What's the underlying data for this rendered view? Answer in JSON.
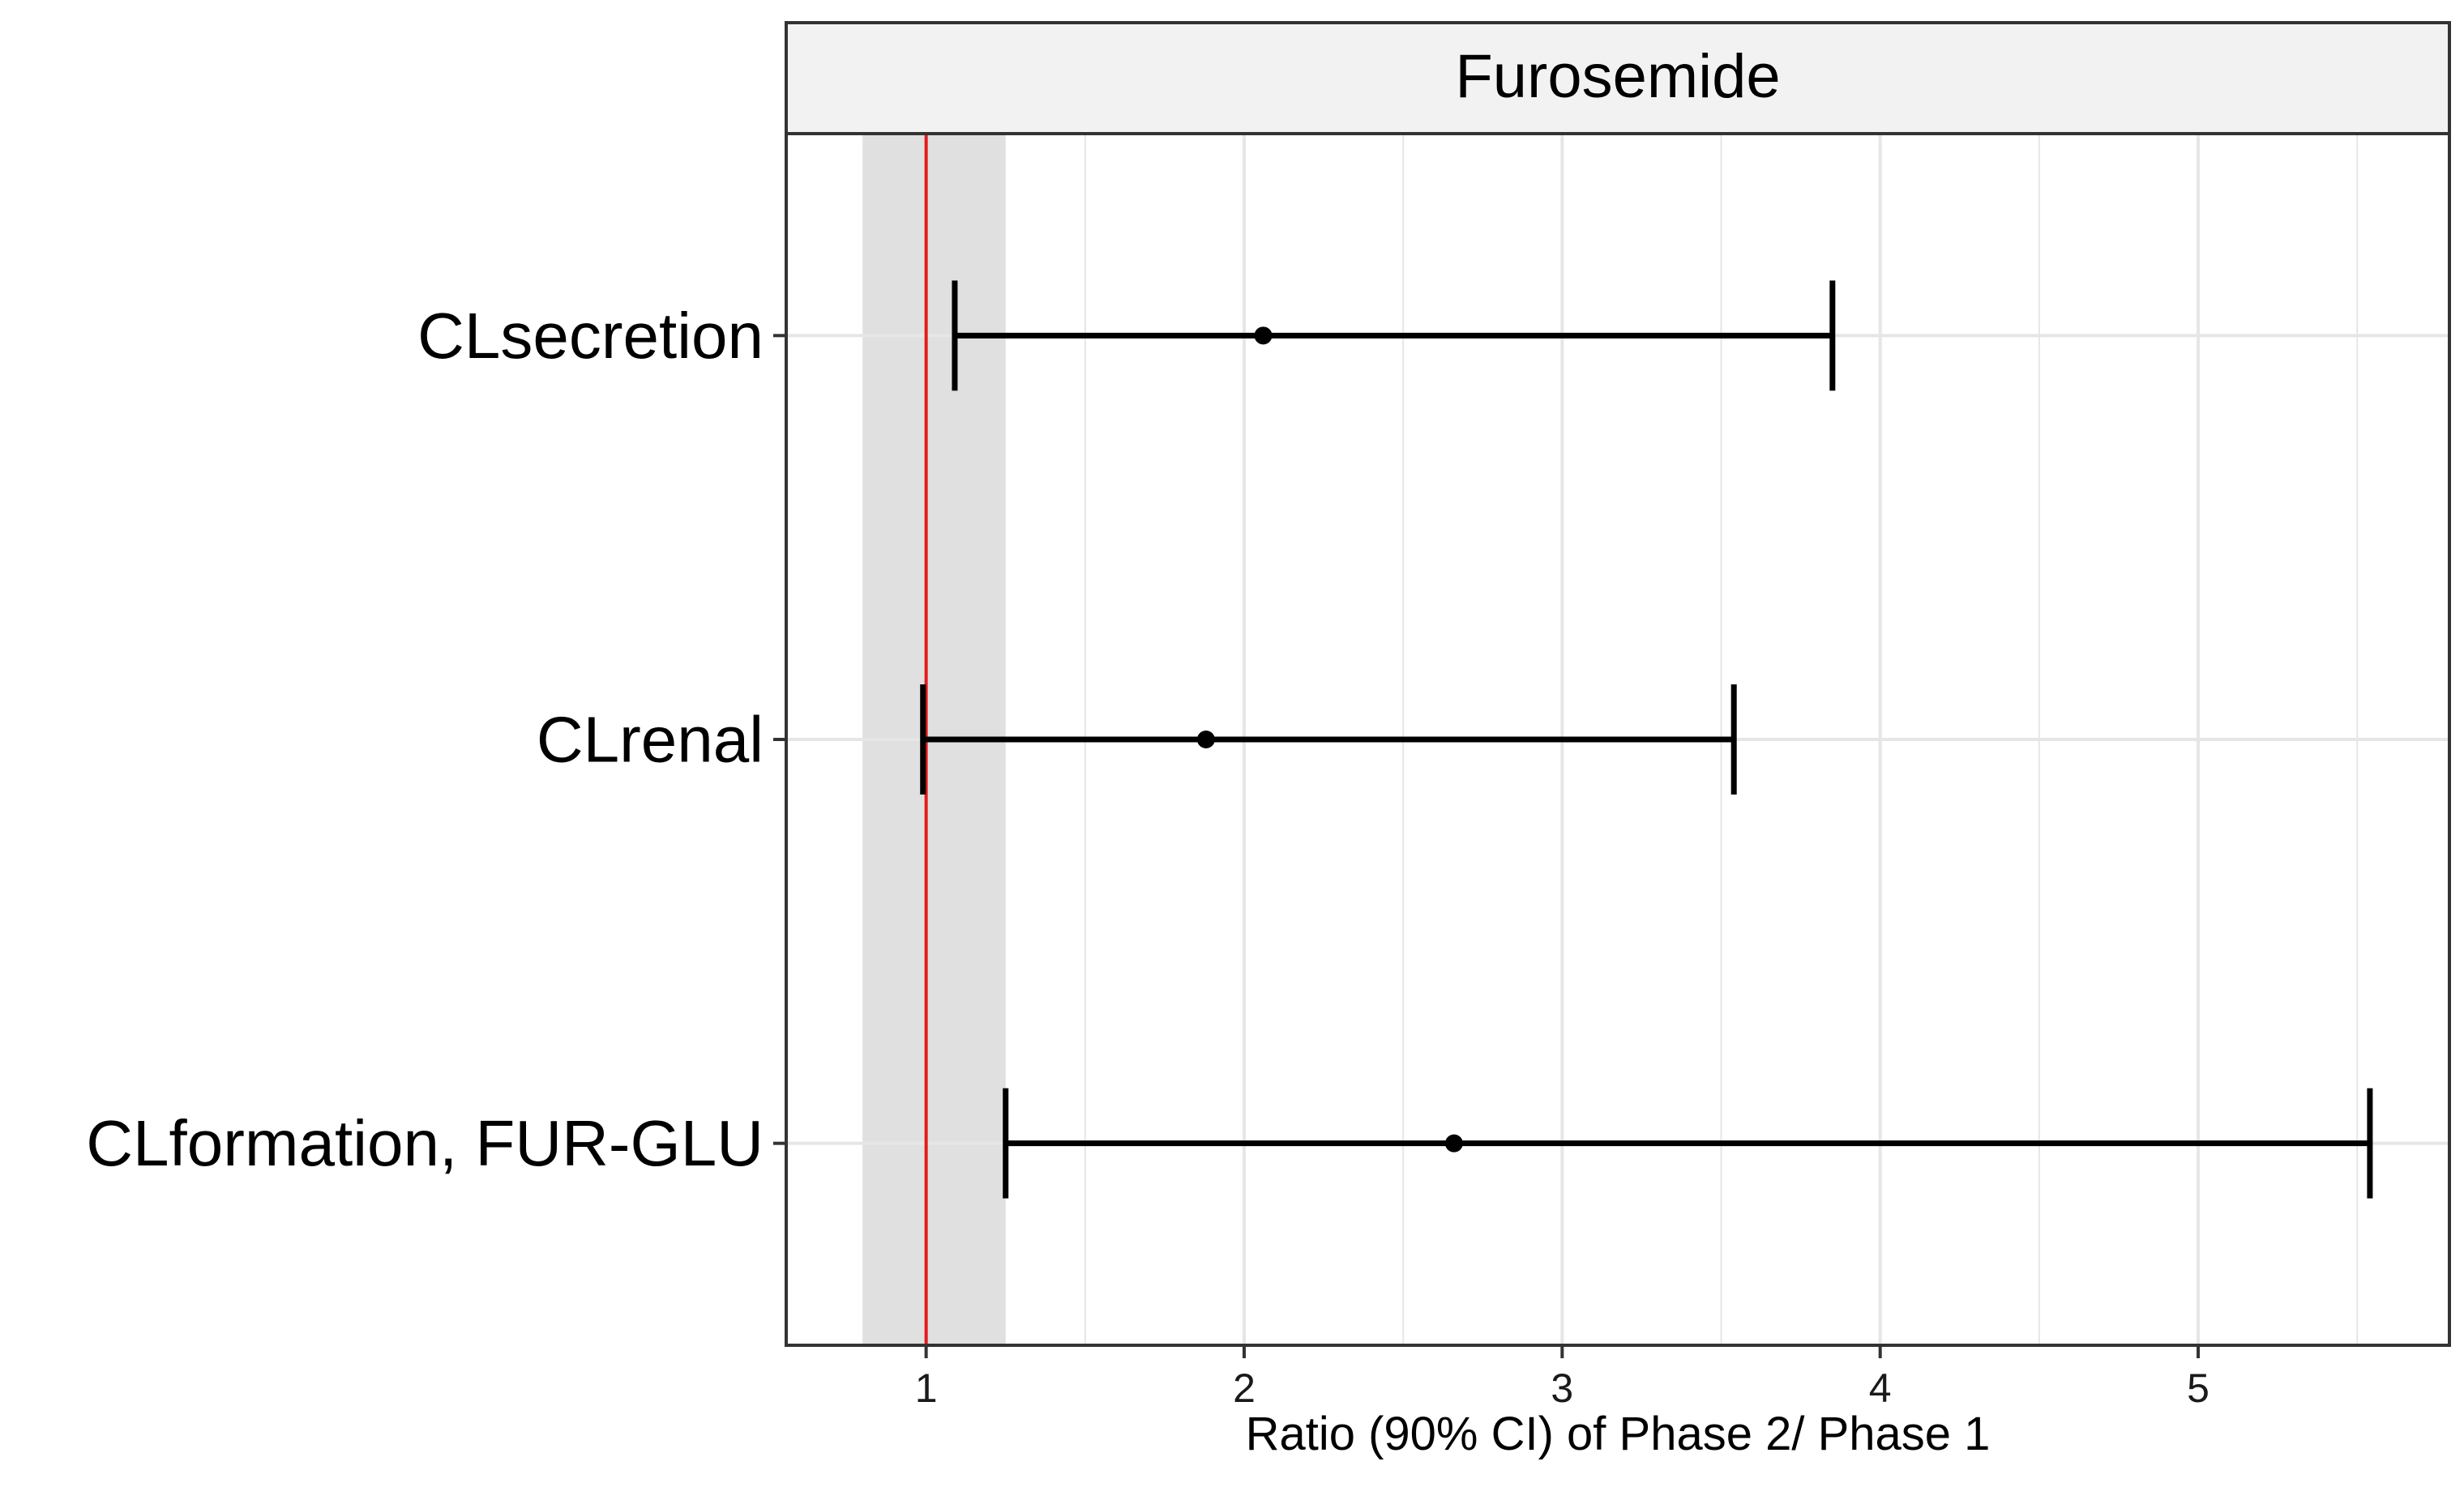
{
  "chart_data": {
    "type": "forest",
    "panel_title": "Furosemide",
    "xlabel": "Ratio (90% CI) of Phase 2/ Phase 1",
    "ylabel": "",
    "xlim": [
      0.56,
      5.79
    ],
    "x_ticks": [
      1,
      2,
      3,
      4,
      5
    ],
    "x_tick_labels": [
      "1",
      "2",
      "3",
      "4",
      "5"
    ],
    "reference_line": {
      "x": 1,
      "color": "#e41a1c"
    },
    "equivalence_band": {
      "lower": 0.8,
      "upper": 1.25,
      "color": "#e0e0e0"
    },
    "grid": true,
    "categories": [
      "CLsecretion",
      "CLrenal",
      "CLformation, FUR-GLU"
    ],
    "estimates": [
      2.06,
      1.88,
      2.66
    ],
    "lower": [
      1.09,
      0.99,
      1.25
    ],
    "upper": [
      3.85,
      3.54,
      5.54
    ],
    "colors": {
      "panel_strip": "#f2f2f2",
      "border": "#333333",
      "gridline": "#e6e6e6",
      "marks": "#000000"
    }
  }
}
